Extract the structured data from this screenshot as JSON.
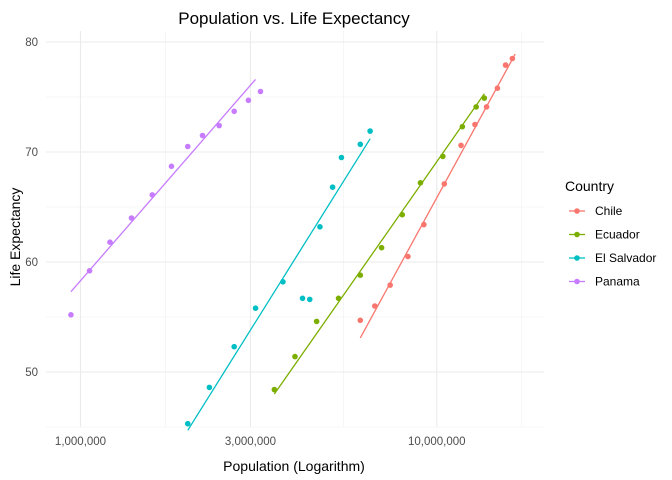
{
  "chart_data": {
    "type": "scatter",
    "title": "Population vs. Life Expectancy",
    "xlabel": "Population (Logarithm)",
    "ylabel": "Life Expectancy",
    "x_scale": "log10",
    "xlim": [
      800000,
      20000000
    ],
    "ylim": [
      45,
      81
    ],
    "x_ticks": [
      {
        "value": 1000000,
        "label": "1,000,000"
      },
      {
        "value": 3000000,
        "label": "3,000,000"
      },
      {
        "value": 10000000,
        "label": "10,000,000"
      }
    ],
    "y_ticks": [
      {
        "value": 50,
        "label": "50"
      },
      {
        "value": 60,
        "label": "60"
      },
      {
        "value": 70,
        "label": "70"
      },
      {
        "value": 80,
        "label": "80"
      }
    ],
    "grid": true,
    "legend": {
      "title": "Country",
      "position": "right"
    },
    "series": [
      {
        "name": "Chile",
        "color": "#F8766D",
        "points": [
          [
            6100000,
            54.7
          ],
          [
            6700000,
            56.0
          ],
          [
            7400000,
            57.9
          ],
          [
            8300000,
            60.5
          ],
          [
            9200000,
            63.4
          ],
          [
            10500000,
            67.1
          ],
          [
            11700000,
            70.6
          ],
          [
            12800000,
            72.5
          ],
          [
            13800000,
            74.1
          ],
          [
            14800000,
            75.8
          ],
          [
            15600000,
            77.9
          ],
          [
            16300000,
            78.5
          ]
        ],
        "fit": {
          "from": 6100000,
          "to": 16600000,
          "y_from": 53.1,
          "y_to": 78.9
        }
      },
      {
        "name": "Ecuador",
        "color": "#7CAE00",
        "points": [
          [
            3500000,
            48.4
          ],
          [
            4000000,
            51.4
          ],
          [
            4600000,
            54.6
          ],
          [
            5300000,
            56.7
          ],
          [
            6100000,
            58.8
          ],
          [
            7000000,
            61.3
          ],
          [
            8000000,
            64.3
          ],
          [
            9000000,
            67.2
          ],
          [
            10400000,
            69.6
          ],
          [
            11800000,
            72.3
          ],
          [
            12900000,
            74.1
          ],
          [
            13600000,
            74.9
          ]
        ],
        "fit": {
          "from": 3500000,
          "to": 13600000,
          "y_from": 48.0,
          "y_to": 75.3
        }
      },
      {
        "name": "El Salvador",
        "color": "#00BFC4",
        "points": [
          [
            2000000,
            45.3
          ],
          [
            2300000,
            48.6
          ],
          [
            2700000,
            52.3
          ],
          [
            3100000,
            55.8
          ],
          [
            3700000,
            58.2
          ],
          [
            4200000,
            56.7
          ],
          [
            4400000,
            56.6
          ],
          [
            4700000,
            63.2
          ],
          [
            5100000,
            66.8
          ],
          [
            5400000,
            69.5
          ],
          [
            6100000,
            70.7
          ],
          [
            6500000,
            71.9
          ]
        ],
        "fit": {
          "from": 2000000,
          "to": 6500000,
          "y_from": 44.7,
          "y_to": 71.2
        }
      },
      {
        "name": "Panama",
        "color": "#C77CFF",
        "points": [
          [
            940000,
            55.2
          ],
          [
            1060000,
            59.2
          ],
          [
            1210000,
            61.8
          ],
          [
            1390000,
            64.0
          ],
          [
            1590000,
            66.1
          ],
          [
            1800000,
            68.7
          ],
          [
            2000000,
            70.5
          ],
          [
            2200000,
            71.5
          ],
          [
            2450000,
            72.4
          ],
          [
            2700000,
            73.7
          ],
          [
            2960000,
            74.7
          ],
          [
            3200000,
            75.5
          ]
        ],
        "fit": {
          "from": 940000,
          "to": 3100000,
          "y_from": 57.3,
          "y_to": 76.6
        }
      }
    ]
  }
}
